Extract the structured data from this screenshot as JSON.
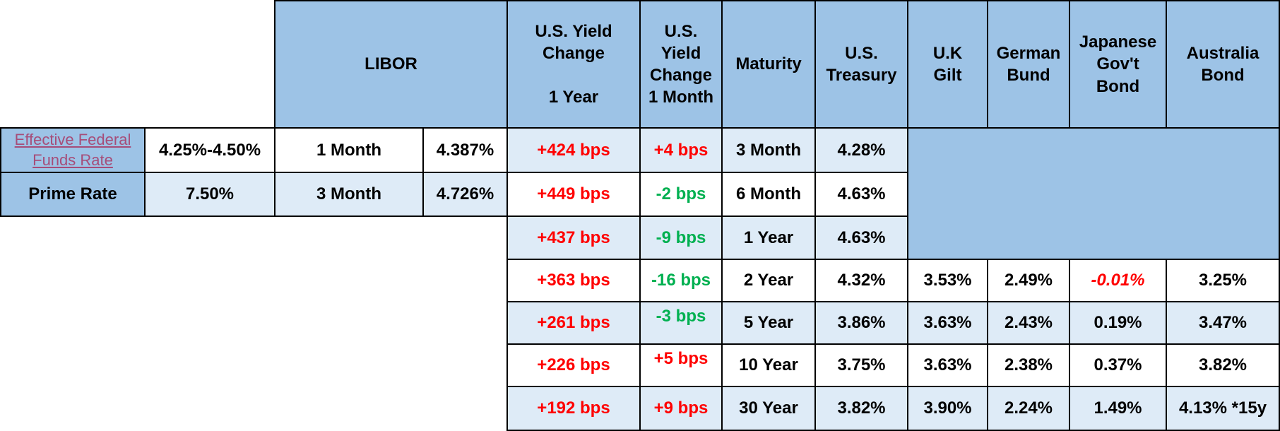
{
  "headers": {
    "libor": "LIBOR",
    "us_yield_change_1y": "U.S. Yield Change\n\n1 Year",
    "us_yield_change_1m": "U.S. Yield Change 1 Month",
    "maturity": "Maturity",
    "us_treasury": "U.S. Treasury",
    "uk_gilt": "U.K Gilt",
    "german_bund": "German Bund",
    "japanese_bond": "Japanese Gov't Bond",
    "australia_bond": "Australia Bond"
  },
  "rates": {
    "fed_funds_label": "Effective Federal Funds Rate",
    "fed_funds_value": "4.25%-4.50%",
    "prime_label": "Prime Rate",
    "prime_value": "7.50%"
  },
  "libor": [
    {
      "tenor": "1 Month",
      "rate": "4.387%"
    },
    {
      "tenor": "3 Month",
      "rate": "4.726%"
    }
  ],
  "rows": [
    {
      "chg1y": "+424 bps",
      "chg1m": "+4 bps",
      "chg1m_color": "red",
      "maturity": "3 Month",
      "ust": "4.28%"
    },
    {
      "chg1y": "+449 bps",
      "chg1m": "-2 bps",
      "chg1m_color": "green",
      "maturity": "6 Month",
      "ust": "4.63%"
    },
    {
      "chg1y": "+437 bps",
      "chg1m": "-9 bps",
      "chg1m_color": "green",
      "maturity": "1 Year",
      "ust": "4.63%"
    },
    {
      "chg1y": "+363 bps",
      "chg1m": "-16 bps",
      "chg1m_color": "green",
      "maturity": "2 Year",
      "ust": "4.32%",
      "gilt": "3.53%",
      "bund": "2.49%",
      "jgb": "-0.01%",
      "aus": "3.25%"
    },
    {
      "chg1y": "+261 bps",
      "chg1m": "-3 bps",
      "chg1m_color": "green",
      "maturity": "5 Year",
      "ust": "3.86%",
      "gilt": "3.63%",
      "bund": "2.43%",
      "jgb": "0.19%",
      "aus": "3.47%"
    },
    {
      "chg1y": "+226 bps",
      "chg1m": "+5 bps",
      "chg1m_color": "red",
      "maturity": "10 Year",
      "ust": "3.75%",
      "gilt": "3.63%",
      "bund": "2.38%",
      "jgb": "0.37%",
      "aus": "3.82%"
    },
    {
      "chg1y": "+192 bps",
      "chg1m": "+9 bps",
      "chg1m_color": "red",
      "maturity": "30 Year",
      "ust": "3.82%",
      "gilt": "3.90%",
      "bund": "2.24%",
      "jgb": "1.49%",
      "aus": "4.13% *15y"
    }
  ],
  "colors": {
    "header_blue": "#9dc3e6",
    "light_blue": "#deebf7",
    "red": "#ff0000",
    "green": "#00b050",
    "link": "#a64d79"
  }
}
